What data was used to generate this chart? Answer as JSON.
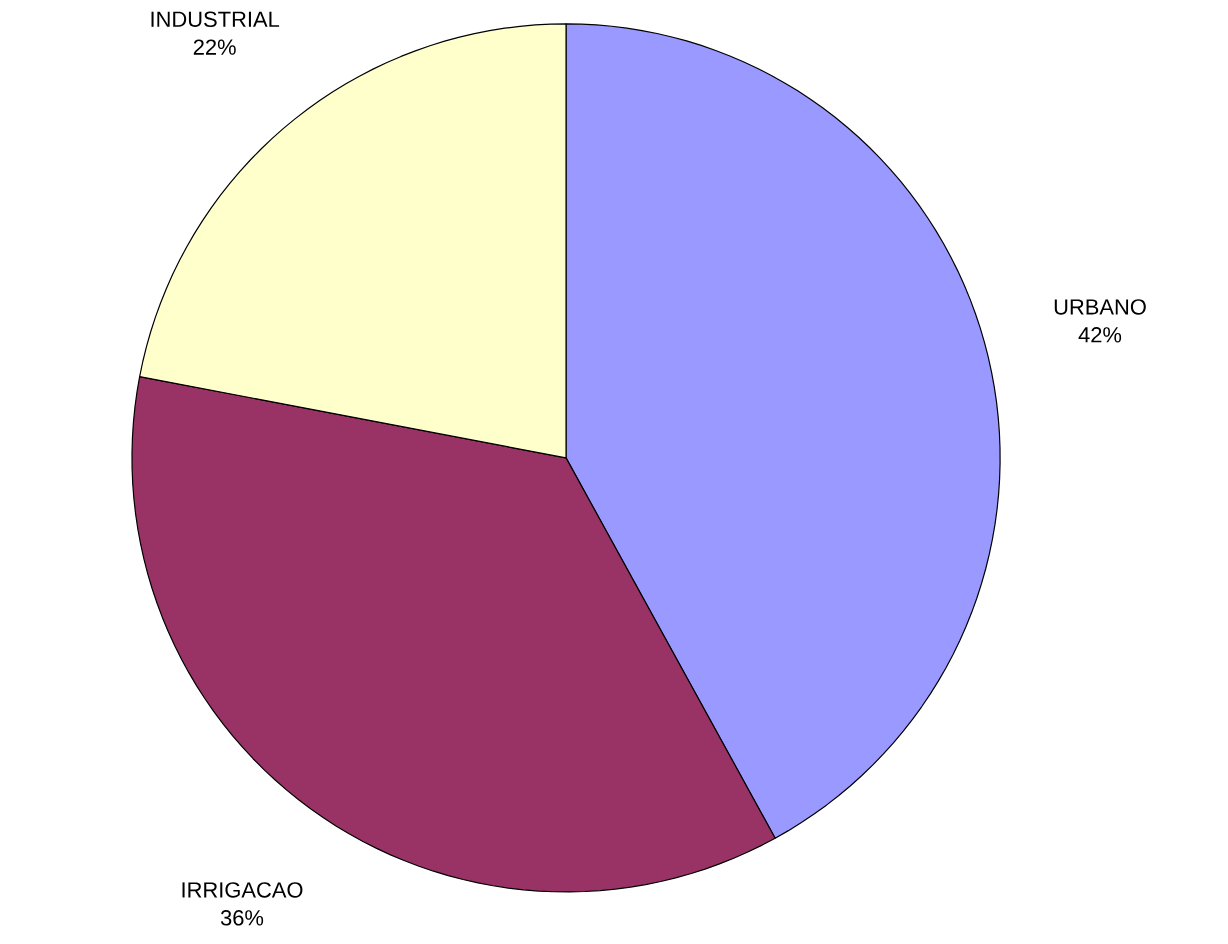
{
  "chart_data": {
    "type": "pie",
    "categories": [
      "URBANO",
      "IRRIGACAO",
      "INDUSTRIAL"
    ],
    "values": [
      42,
      36,
      22
    ],
    "value_labels": [
      "42%",
      "36%",
      "22%"
    ],
    "colors": [
      "#9999ff",
      "#993366",
      "#ffffcc"
    ]
  }
}
